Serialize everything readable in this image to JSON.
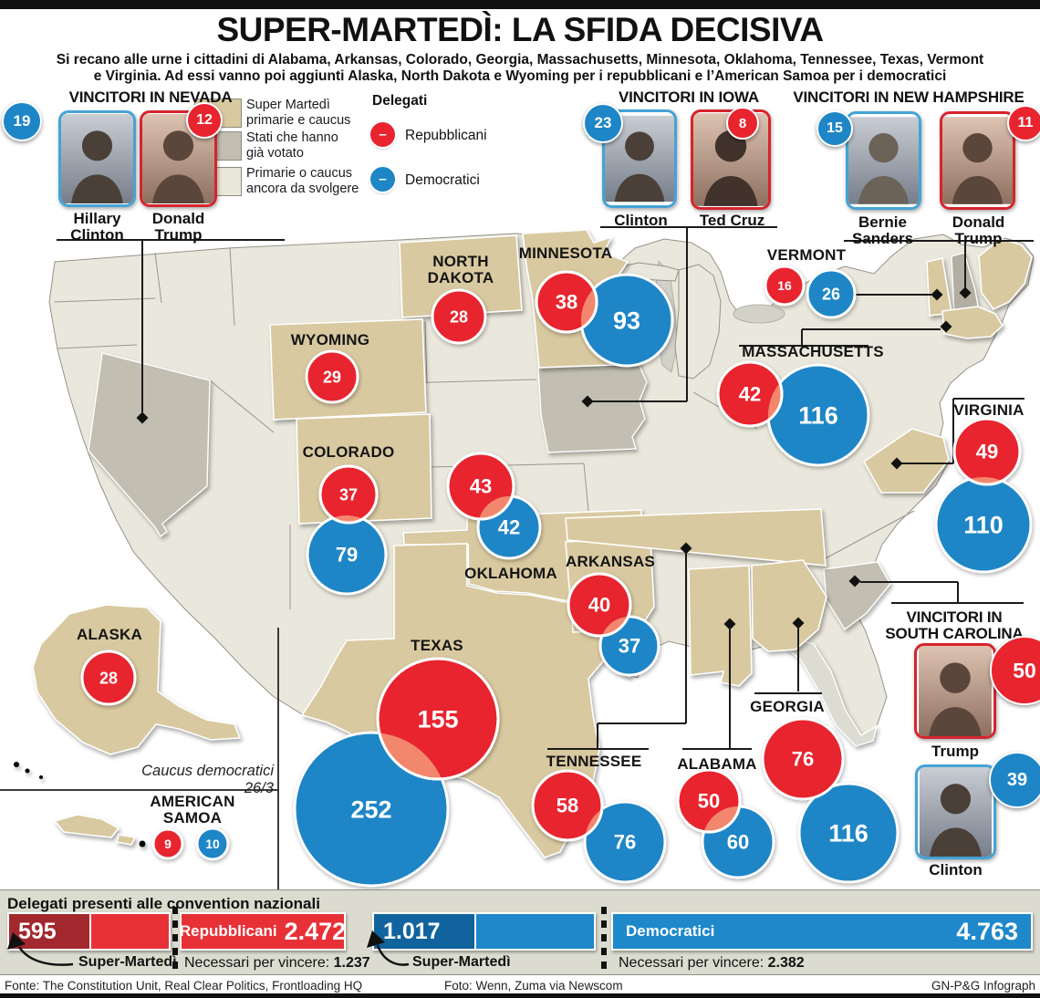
{
  "title": "SUPER-MARTEDÌ: LA SFIDA DECISIVA",
  "subtitle_line1": "Si recano alle urne i cittadini di Alabama, Arkansas, Colorado, Georgia, Massachusetts, Minnesota, Oklahoma, Tennessee, Texas, Vermont",
  "subtitle_line2": "e Virginia. Ad essi vanno poi aggiunti Alaska, North Dakota e Wyoming per i repubblicani e l’American Samoa per i democratici",
  "legend": {
    "items": [
      {
        "line1": "Super Martedì",
        "line2": "primarie e caucus",
        "color": "#d9c9a0"
      },
      {
        "line1": "Stati che hanno",
        "line2": "già votato",
        "color": "#c1beb1"
      },
      {
        "line1": "Primarie o caucus",
        "line2": "ancora da svolgere",
        "color": "#e9e7da"
      }
    ],
    "delegati_title": "Delegati",
    "parties": [
      {
        "label": "Repubblicani",
        "mark": "–",
        "color": "#e8242f"
      },
      {
        "label": "Democratici",
        "mark": "–",
        "color": "#1e86c6"
      }
    ]
  },
  "winners": [
    {
      "title": "VINCITORI IN NEVADA",
      "people": [
        {
          "name_line1": "Hillary",
          "name_line2": "Clinton",
          "value": "19"
        },
        {
          "name_line1": "Donald",
          "name_line2": "Trump",
          "value": "12"
        }
      ]
    },
    {
      "title": "VINCITORI IN IOWA",
      "people": [
        {
          "name_line1": "Clinton",
          "name_line2": "",
          "value": "23"
        },
        {
          "name_line1": "Ted Cruz",
          "name_line2": "",
          "value": "8"
        }
      ]
    },
    {
      "title": "VINCITORI IN NEW HAMPSHIRE",
      "people": [
        {
          "name_line1": "Bernie",
          "name_line2": "Sanders",
          "value": "15"
        },
        {
          "name_line1": "Donald",
          "name_line2": "Trump",
          "value": "11"
        }
      ]
    },
    {
      "title_line1": "VINCITORI IN",
      "title_line2": "SOUTH CAROLINA",
      "people": [
        {
          "name_line1": "Trump",
          "name_line2": "",
          "value": "50"
        },
        {
          "name_line1": "Clinton",
          "name_line2": "",
          "value": "39"
        }
      ]
    }
  ],
  "map": {
    "alaska_note": "Caucus democratici 26/3",
    "states": [
      {
        "id": "north_dakota",
        "name_lines": [
          "NORTH",
          "DAKOTA"
        ],
        "rep": "28",
        "dem": null
      },
      {
        "id": "minnesota",
        "name_lines": [
          "MINNESOTA"
        ],
        "rep": "38",
        "dem": "93"
      },
      {
        "id": "wyoming",
        "name_lines": [
          "WYOMING"
        ],
        "rep": "29",
        "dem": null
      },
      {
        "id": "vermont",
        "name_lines": [
          "VERMONT"
        ],
        "rep": "16",
        "dem": "26"
      },
      {
        "id": "massachusetts",
        "name_lines": [
          "MASSACHUSETTS"
        ],
        "rep": "42",
        "dem": "116"
      },
      {
        "id": "colorado",
        "name_lines": [
          "COLORADO"
        ],
        "rep": "37",
        "dem": "79"
      },
      {
        "id": "oklahoma",
        "name_lines": [
          "OKLAHOMA"
        ],
        "rep": "43",
        "dem": "42"
      },
      {
        "id": "virginia",
        "name_lines": [
          "VIRGINIA"
        ],
        "rep": "49",
        "dem": "110"
      },
      {
        "id": "arkansas",
        "name_lines": [
          "ARKANSAS"
        ],
        "rep": "40",
        "dem": "37"
      },
      {
        "id": "texas",
        "name_lines": [
          "TEXAS"
        ],
        "rep": "155",
        "dem": "252"
      },
      {
        "id": "tennessee",
        "name_lines": [
          "TENNESSEE"
        ],
        "rep": "58",
        "dem": "76"
      },
      {
        "id": "alabama",
        "name_lines": [
          "ALABAMA"
        ],
        "rep": "50",
        "dem": "60"
      },
      {
        "id": "georgia",
        "name_lines": [
          "GEORGIA"
        ],
        "rep": "76",
        "dem": "116"
      },
      {
        "id": "alaska",
        "name_lines": [
          "ALASKA"
        ],
        "rep": "28",
        "dem": null
      },
      {
        "id": "american_samoa",
        "name_lines": [
          "AMERICAN",
          "SAMOA"
        ],
        "rep": "9",
        "dem": "10"
      }
    ]
  },
  "bottom": {
    "header": "Delegati presenti alle convention nazionali",
    "republicans": {
      "super_tuesday": "595",
      "arrow_label": "Super-Martedì",
      "total_label": "Repubblicani",
      "total": "2.472",
      "needed_label": "Necessari per vincere:",
      "needed": "1.237"
    },
    "democrats": {
      "super_tuesday": "1.017",
      "arrow_label": "Super-Martedì",
      "total_label": "Democratici",
      "total": "4.763",
      "needed_label": "Necessari per vincere:",
      "needed": "2.382"
    }
  },
  "footer": {
    "source": "Fonte: The Constitution Unit, Real Clear Politics, Frontloading HQ",
    "photo": "Foto: Wenn, Zuma via Newscom",
    "credit": "GN-P&G Infograph"
  }
}
